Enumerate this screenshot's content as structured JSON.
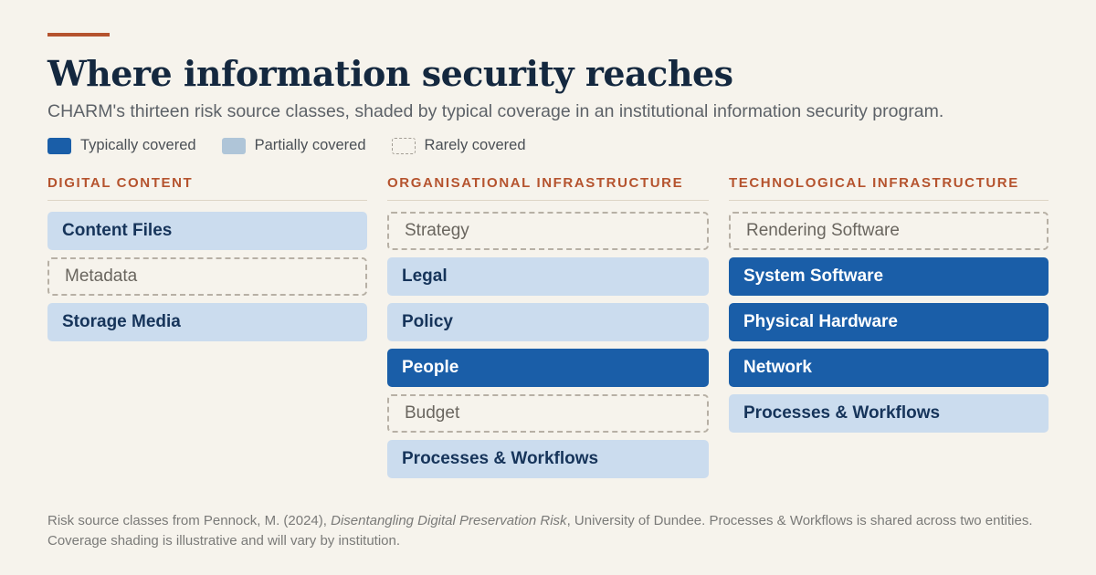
{
  "header": {
    "title": "Where information security reaches",
    "subtitle": "CHARM's thirteen risk source classes, shaded by typical coverage in an institutional information security program."
  },
  "legend": [
    {
      "key": "full",
      "label": "Typically covered",
      "color": "#1a5ea8"
    },
    {
      "key": "partial",
      "label": "Partially covered",
      "color": "#afc5d8"
    },
    {
      "key": "rare",
      "label": "Rarely covered",
      "color": "#a29d94"
    }
  ],
  "columns": [
    {
      "header": "Digital Content",
      "items": [
        {
          "label": "Content Files",
          "coverage": "partial"
        },
        {
          "label": "Metadata",
          "coverage": "rare"
        },
        {
          "label": "Storage Media",
          "coverage": "partial"
        }
      ]
    },
    {
      "header": "Organisational Infrastructure",
      "items": [
        {
          "label": "Strategy",
          "coverage": "rare"
        },
        {
          "label": "Legal",
          "coverage": "partial"
        },
        {
          "label": "Policy",
          "coverage": "partial"
        },
        {
          "label": "People",
          "coverage": "full"
        },
        {
          "label": "Budget",
          "coverage": "rare"
        },
        {
          "label": "Processes & Workflows",
          "coverage": "partial"
        }
      ]
    },
    {
      "header": "Technological Infrastructure",
      "items": [
        {
          "label": "Rendering Software",
          "coverage": "rare"
        },
        {
          "label": "System Software",
          "coverage": "full"
        },
        {
          "label": "Physical Hardware",
          "coverage": "full"
        },
        {
          "label": "Network",
          "coverage": "full"
        },
        {
          "label": "Processes & Workflows",
          "coverage": "partial"
        }
      ]
    }
  ],
  "footnote": {
    "before": "Risk source classes from Pennock, M. (2024), ",
    "citation": "Disentangling Digital Preservation Risk",
    "after": ", University of Dundee. Processes & Workflows is shared across two entities. Coverage shading is illustrative and will vary by institution."
  }
}
